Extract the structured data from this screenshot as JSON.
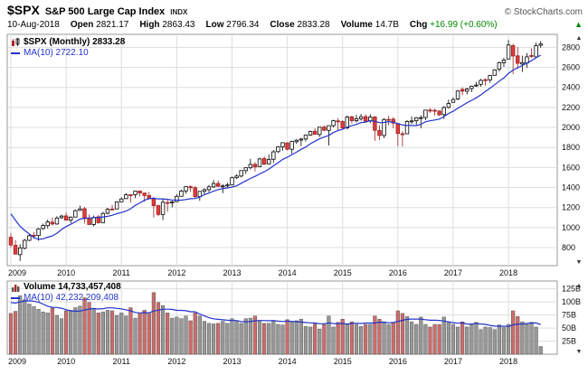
{
  "header": {
    "symbol": "$SPX",
    "name": "S&P 500 Large Cap Index",
    "exchange": "INDX",
    "copyright": "© StockCharts.com",
    "date": "10-Aug-2018",
    "quote": {
      "open": {
        "label": "Open",
        "value": "2821.17"
      },
      "high": {
        "label": "High",
        "value": "2863.43"
      },
      "low": {
        "label": "Low",
        "value": "2796.34"
      },
      "close": {
        "label": "Close",
        "value": "2833.28"
      },
      "volume": {
        "label": "Volume",
        "value": "14.7B"
      },
      "chg": {
        "label": "Chg",
        "value": "+16.99 (+0.60%)"
      }
    }
  },
  "price_pane": {
    "legend_main": "$SPX (Monthly) 2833.28",
    "legend_ma": "MA(10) 2722.10"
  },
  "volume_pane": {
    "legend_main": "Volume 14,733,457,408",
    "legend_ma": "MA(10) 42,232,209,408"
  },
  "icons": {
    "up_arrow": "▲",
    "down_arrow": "▼"
  },
  "colors": {
    "up_fill": "#ffffff",
    "up_stroke": "#000000",
    "down_fill": "#e03c3c",
    "down_stroke": "#9e1f1f",
    "ma_line": "#2233cc",
    "grid": "#dedede",
    "frame": "#999999",
    "vol_up_fill": "#989898",
    "vol_down_fill": "#cf6b6b",
    "vol_stroke": "#555555",
    "axis_text": "#111111",
    "chg_green": "#008800"
  },
  "chart_data": [
    {
      "type": "candlestick",
      "title": "$SPX (Monthly)",
      "frequency": "monthly",
      "start": "2009-01",
      "end": "2018-08",
      "x_years": [
        "2009",
        "2010",
        "2011",
        "2012",
        "2013",
        "2014",
        "2015",
        "2016",
        "2017",
        "2018"
      ],
      "y_ticks": [
        800,
        1000,
        1200,
        1400,
        1600,
        1800,
        2000,
        2200,
        2400,
        2600,
        2800
      ],
      "y_range": [
        620,
        2930
      ],
      "ma_period": 10,
      "ma10_last": 2722.1,
      "last_close": 2833.28,
      "ma10_seed": [
        1385.59,
        1400.38,
        1280.0,
        1267.38,
        1282.83,
        1166.36,
        968.75,
        896.24,
        903.25
      ],
      "ohlc": [
        [
          902.99,
          943.85,
          804.3,
          825.88
        ],
        [
          823.09,
          875.01,
          734.52,
          735.09
        ],
        [
          729.57,
          832.98,
          666.79,
          797.87
        ],
        [
          793.59,
          888.7,
          783.32,
          872.81
        ],
        [
          872.74,
          930.17,
          866.1,
          919.14
        ],
        [
          923.26,
          956.23,
          888.86,
          919.32
        ],
        [
          920.82,
          996.68,
          869.32,
          987.48
        ],
        [
          990.22,
          1039.47,
          978.51,
          1020.62
        ],
        [
          1019.52,
          1080.15,
          991.97,
          1057.08
        ],
        [
          1054.91,
          1101.36,
          1019.95,
          1036.19
        ],
        [
          1036.18,
          1113.69,
          1029.38,
          1095.63
        ],
        [
          1098.89,
          1130.38,
          1085.89,
          1115.1
        ],
        [
          1116.56,
          1150.45,
          1071.59,
          1073.87
        ],
        [
          1073.89,
          1112.42,
          1044.5,
          1104.49
        ],
        [
          1105.36,
          1180.69,
          1105.36,
          1169.43
        ],
        [
          1171.23,
          1219.8,
          1170.69,
          1186.69
        ],
        [
          1188.58,
          1205.13,
          1040.78,
          1089.41
        ],
        [
          1087.18,
          1131.23,
          1028.33,
          1030.71
        ],
        [
          1031.1,
          1120.95,
          1010.91,
          1101.6
        ],
        [
          1107.53,
          1129.24,
          1039.7,
          1049.33
        ],
        [
          1049.72,
          1157.16,
          1049.72,
          1141.2
        ],
        [
          1143.49,
          1196.14,
          1131.87,
          1183.26
        ],
        [
          1185.71,
          1227.08,
          1173.0,
          1180.55
        ],
        [
          1186.6,
          1262.6,
          1186.6,
          1257.64
        ],
        [
          1257.62,
          1302.67,
          1257.62,
          1286.12
        ],
        [
          1289.14,
          1344.07,
          1289.14,
          1327.22
        ],
        [
          1328.64,
          1332.28,
          1249.05,
          1325.83
        ],
        [
          1329.48,
          1364.56,
          1294.7,
          1363.61
        ],
        [
          1365.21,
          1370.58,
          1311.8,
          1345.2
        ],
        [
          1345.2,
          1345.2,
          1258.07,
          1320.64
        ],
        [
          1320.64,
          1356.48,
          1282.86,
          1292.28
        ],
        [
          1292.59,
          1307.38,
          1101.54,
          1218.89
        ],
        [
          1219.12,
          1229.29,
          1114.22,
          1131.42
        ],
        [
          1131.21,
          1292.66,
          1074.77,
          1253.3
        ],
        [
          1251.0,
          1277.55,
          1158.66,
          1246.96
        ],
        [
          1246.91,
          1269.37,
          1202.37,
          1257.6
        ],
        [
          1258.86,
          1333.47,
          1258.86,
          1312.41
        ],
        [
          1312.45,
          1378.04,
          1312.45,
          1365.68
        ],
        [
          1365.9,
          1414.0,
          1340.03,
          1408.47
        ],
        [
          1408.47,
          1422.38,
          1357.38,
          1397.91
        ],
        [
          1397.86,
          1415.32,
          1291.98,
          1310.33
        ],
        [
          1309.87,
          1363.46,
          1266.74,
          1362.16
        ],
        [
          1362.33,
          1391.74,
          1325.41,
          1379.32
        ],
        [
          1378.68,
          1426.68,
          1354.65,
          1406.58
        ],
        [
          1406.54,
          1474.51,
          1396.56,
          1440.67
        ],
        [
          1440.9,
          1470.96,
          1403.28,
          1412.16
        ],
        [
          1412.2,
          1433.38,
          1343.35,
          1416.18
        ],
        [
          1416.34,
          1448.0,
          1398.11,
          1426.19
        ],
        [
          1426.19,
          1509.94,
          1426.19,
          1498.11
        ],
        [
          1498.11,
          1530.94,
          1485.01,
          1514.68
        ],
        [
          1514.68,
          1570.28,
          1501.48,
          1569.19
        ],
        [
          1569.18,
          1597.57,
          1536.03,
          1597.57
        ],
        [
          1597.55,
          1687.18,
          1581.28,
          1630.74
        ],
        [
          1631.71,
          1654.19,
          1560.33,
          1606.28
        ],
        [
          1609.78,
          1698.78,
          1604.57,
          1685.73
        ],
        [
          1689.42,
          1709.67,
          1627.47,
          1632.97
        ],
        [
          1635.95,
          1729.86,
          1633.41,
          1681.55
        ],
        [
          1682.41,
          1775.22,
          1646.02,
          1756.54
        ],
        [
          1758.7,
          1813.55,
          1746.2,
          1805.81
        ],
        [
          1806.55,
          1849.44,
          1767.99,
          1848.36
        ],
        [
          1845.86,
          1850.84,
          1770.45,
          1782.59
        ],
        [
          1782.68,
          1867.92,
          1737.92,
          1859.45
        ],
        [
          1857.68,
          1883.97,
          1834.44,
          1872.34
        ],
        [
          1873.96,
          1897.28,
          1814.36,
          1883.95
        ],
        [
          1884.39,
          1924.03,
          1859.79,
          1923.57
        ],
        [
          1923.87,
          1968.17,
          1915.98,
          1960.23
        ],
        [
          1962.29,
          1991.39,
          1930.67,
          1930.67
        ],
        [
          1929.8,
          2005.04,
          1904.78,
          2003.37
        ],
        [
          2004.07,
          2019.26,
          1964.04,
          1972.29
        ],
        [
          1971.44,
          2018.19,
          1820.66,
          2018.05
        ],
        [
          2018.21,
          2075.76,
          2001.01,
          2067.56
        ],
        [
          2065.78,
          2093.55,
          1972.56,
          2058.9
        ],
        [
          2058.9,
          2072.36,
          1988.12,
          1994.99
        ],
        [
          1996.67,
          2119.59,
          1980.9,
          2104.5
        ],
        [
          2105.23,
          2117.52,
          2039.69,
          2067.89
        ],
        [
          2067.63,
          2125.92,
          2048.38,
          2085.51
        ],
        [
          2087.38,
          2134.72,
          2067.93,
          2107.39
        ],
        [
          2108.64,
          2129.87,
          2056.32,
          2063.11
        ],
        [
          2067.0,
          2132.82,
          2044.02,
          2103.84
        ],
        [
          2104.49,
          2112.66,
          1867.01,
          1972.18
        ],
        [
          1970.09,
          2020.86,
          1871.91,
          1920.03
        ],
        [
          1919.65,
          2094.32,
          1893.7,
          2079.36
        ],
        [
          2080.76,
          2116.48,
          2019.39,
          2080.41
        ],
        [
          2082.93,
          2104.27,
          1993.26,
          2043.94
        ],
        [
          2038.2,
          2038.2,
          1812.29,
          1940.24
        ],
        [
          1936.94,
          1962.96,
          1810.1,
          1932.23
        ],
        [
          1937.09,
          2072.21,
          1937.09,
          2059.74
        ],
        [
          2056.62,
          2111.05,
          2033.8,
          2065.3
        ],
        [
          2067.17,
          2103.48,
          2025.91,
          2096.95
        ],
        [
          2093.94,
          2120.55,
          1991.68,
          2098.86
        ],
        [
          2099.34,
          2177.09,
          2074.02,
          2173.6
        ],
        [
          2173.15,
          2193.81,
          2147.58,
          2170.95
        ],
        [
          2171.33,
          2187.87,
          2119.12,
          2168.27
        ],
        [
          2164.33,
          2169.6,
          2114.72,
          2126.15
        ],
        [
          2128.68,
          2214.1,
          2083.79,
          2198.81
        ],
        [
          2200.17,
          2277.53,
          2187.44,
          2238.83
        ],
        [
          2251.57,
          2300.99,
          2245.13,
          2278.87
        ],
        [
          2285.59,
          2371.54,
          2271.65,
          2363.64
        ],
        [
          2380.13,
          2400.98,
          2322.25,
          2362.72
        ],
        [
          2362.34,
          2398.16,
          2328.95,
          2384.2
        ],
        [
          2388.5,
          2418.71,
          2352.72,
          2411.8
        ],
        [
          2415.65,
          2453.82,
          2405.7,
          2423.41
        ],
        [
          2431.39,
          2484.04,
          2407.7,
          2470.3
        ],
        [
          2477.1,
          2490.87,
          2417.35,
          2471.65
        ],
        [
          2474.42,
          2519.44,
          2446.55,
          2519.36
        ],
        [
          2521.2,
          2582.98,
          2520.4,
          2575.26
        ],
        [
          2583.21,
          2657.74,
          2557.45,
          2647.58
        ],
        [
          2645.1,
          2694.97,
          2605.52,
          2673.61
        ],
        [
          2683.73,
          2872.87,
          2682.36,
          2823.81
        ],
        [
          2816.45,
          2835.96,
          2532.69,
          2713.83
        ],
        [
          2715.22,
          2801.9,
          2585.89,
          2640.87
        ],
        [
          2633.45,
          2717.49,
          2553.8,
          2648.05
        ],
        [
          2642.96,
          2742.24,
          2594.62,
          2705.27
        ],
        [
          2718.7,
          2791.47,
          2691.99,
          2718.37
        ],
        [
          2704.95,
          2848.03,
          2698.95,
          2816.29
        ],
        [
          2821.17,
          2863.43,
          2796.34,
          2833.28
        ]
      ]
    },
    {
      "type": "bar",
      "title": "Volume",
      "frequency": "monthly",
      "start": "2009-01",
      "end": "2018-08",
      "y_ticks": [
        25,
        50,
        75,
        100,
        125
      ],
      "y_tick_suffix": "B",
      "y_range": [
        0,
        140
      ],
      "ma_period": 10,
      "last_volume_billions": 14.7,
      "ma10_seed": [
        92,
        88,
        86,
        94,
        99,
        104,
        118,
        121,
        108
      ],
      "values_billions": [
        78,
        82,
        112,
        104,
        96,
        91,
        86,
        81,
        79,
        88,
        74,
        68,
        83,
        84,
        89,
        92,
        108,
        99,
        88,
        79,
        81,
        84,
        83,
        74,
        79,
        73,
        89,
        69,
        79,
        84,
        78,
        118,
        99,
        93,
        79,
        69,
        71,
        68,
        73,
        64,
        79,
        73,
        63,
        59,
        58,
        59,
        63,
        59,
        68,
        63,
        59,
        68,
        69,
        73,
        63,
        59,
        59,
        63,
        57,
        56,
        66,
        62,
        64,
        67,
        53,
        52,
        58,
        48,
        57,
        73,
        52,
        61,
        67,
        57,
        62,
        57,
        53,
        57,
        57,
        73,
        67,
        62,
        57,
        61,
        83,
        78,
        72,
        62,
        57,
        71,
        57,
        52,
        57,
        57,
        71,
        62,
        57,
        52,
        62,
        52,
        56,
        61,
        47,
        52,
        51,
        47,
        56,
        51,
        57,
        83,
        72,
        62,
        57,
        61,
        52,
        14.7
      ]
    }
  ]
}
